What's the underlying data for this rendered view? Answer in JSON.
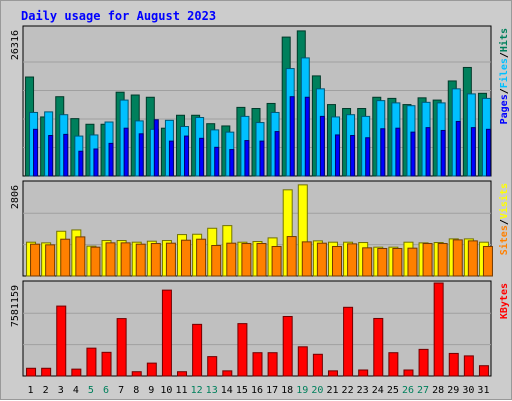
{
  "chart_data": {
    "type": "bar",
    "title": "Daily usage for August 2023",
    "categories": [
      "1",
      "2",
      "3",
      "4",
      "5",
      "6",
      "7",
      "8",
      "9",
      "10",
      "11",
      "12",
      "13",
      "14",
      "15",
      "16",
      "17",
      "18",
      "19",
      "20",
      "21",
      "22",
      "23",
      "24",
      "25",
      "26",
      "27",
      "28",
      "29",
      "30",
      "31"
    ],
    "weekend_days": [
      "5",
      "6",
      "12",
      "13",
      "19",
      "20",
      "26",
      "27"
    ],
    "panels": [
      {
        "id": "hits-files-pages",
        "max_label": "26316",
        "ymax": 26316,
        "legend": [
          "Pages",
          "Files",
          "Hits"
        ],
        "series": [
          {
            "name": "Hits",
            "color": "#00805c",
            "values": [
              17600,
              10500,
              14100,
              10200,
              9200,
              9200,
              14900,
              14400,
              14000,
              8500,
              10800,
              10800,
              9300,
              8900,
              12200,
              12000,
              12900,
              24700,
              25800,
              17800,
              12700,
              12000,
              12000,
              14000,
              13800,
              12700,
              13900,
              13500,
              16900,
              19300,
              14700
            ]
          },
          {
            "name": "Files",
            "color": "#00c0ff",
            "values": [
              11300,
              11400,
              10900,
              7100,
              7300,
              9600,
              13500,
              9800,
              8300,
              9900,
              8800,
              10400,
              8200,
              7800,
              10600,
              9500,
              11300,
              19100,
              21000,
              15500,
              10500,
              10900,
              10600,
              13400,
              13000,
              12500,
              13100,
              13000,
              15500,
              14600,
              13800
            ]
          },
          {
            "name": "Pages",
            "color": "#0000ff",
            "values": [
              8300,
              7200,
              7400,
              4400,
              4800,
              5800,
              8500,
              7500,
              10000,
              6200,
              7100,
              6700,
              5100,
              4700,
              6300,
              6200,
              7900,
              14100,
              14000,
              10600,
              7300,
              7200,
              6800,
              8400,
              8500,
              7800,
              8600,
              8100,
              9700,
              8600,
              8300
            ]
          }
        ]
      },
      {
        "id": "visits-sites",
        "max_label": "2806",
        "ymax": 2806,
        "legend": [
          "Sites",
          "Visits"
        ],
        "series": [
          {
            "name": "Visits",
            "color": "#ffff00",
            "values": [
              1020,
              1000,
              1350,
              1390,
              900,
              1070,
              1070,
              1020,
              1050,
              1070,
              1250,
              1260,
              1440,
              1520,
              1020,
              1040,
              1150,
              2600,
              2750,
              1060,
              1020,
              1020,
              1010,
              870,
              870,
              1020,
              1000,
              1010,
              1120,
              1120,
              1020
            ]
          },
          {
            "name": "Sites",
            "color": "#ff8000",
            "values": [
              960,
              940,
              1110,
              1180,
              870,
              1000,
              1000,
              960,
              980,
              990,
              1080,
              1110,
              920,
              990,
              980,
              980,
              890,
              1190,
              1030,
              990,
              890,
              970,
              850,
              830,
              830,
              840,
              980,
              980,
              1090,
              1060,
              890
            ]
          }
        ]
      },
      {
        "id": "kbytes",
        "max_label": "7581159",
        "ymax": 7581159,
        "legend": [
          "KBytes"
        ],
        "series": [
          {
            "name": "KBytes",
            "color": "#ff0000",
            "values": [
              630000,
              630000,
              5700000,
              560000,
              2270000,
              1930000,
              4680000,
              350000,
              1050000,
              7000000,
              350000,
              4210000,
              1580000,
              420000,
              4270000,
              1900000,
              1900000,
              4850000,
              2380000,
              1770000,
              420000,
              5600000,
              490000,
              4690000,
              1900000,
              490000,
              2170000,
              7580000,
              1840000,
              1640000,
              840000
            ]
          }
        ]
      }
    ]
  },
  "colors": {
    "background": "#cccccc",
    "plot_background": "#c0c0c0",
    "title": "#0000ff",
    "axis_text": "#000000",
    "weekday_text": "#000000",
    "weekend_text": "#00805c",
    "gridline": "#a0a0a0"
  }
}
